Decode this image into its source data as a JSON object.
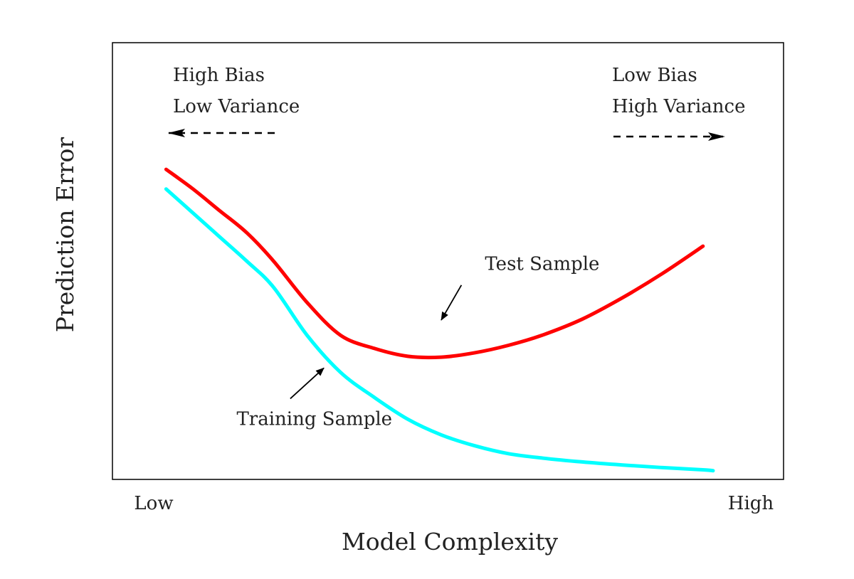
{
  "chart_data": {
    "type": "line",
    "title": "",
    "xlabel": "Model Complexity",
    "ylabel": "Prediction Error",
    "xlim": [
      0,
      1
    ],
    "ylim": [
      0,
      1
    ],
    "x_ticks": [
      {
        "x": 0.06,
        "label": "Low"
      },
      {
        "x": 0.955,
        "label": "High"
      }
    ],
    "grid": false,
    "series": [
      {
        "name": "Test Sample",
        "color": "#ff0000",
        "points": [
          [
            0.08,
            0.71
          ],
          [
            0.12,
            0.665
          ],
          [
            0.16,
            0.615
          ],
          [
            0.2,
            0.565
          ],
          [
            0.24,
            0.5
          ],
          [
            0.29,
            0.405
          ],
          [
            0.34,
            0.33
          ],
          [
            0.39,
            0.3
          ],
          [
            0.44,
            0.282
          ],
          [
            0.49,
            0.28
          ],
          [
            0.54,
            0.29
          ],
          [
            0.59,
            0.307
          ],
          [
            0.64,
            0.33
          ],
          [
            0.7,
            0.367
          ],
          [
            0.76,
            0.416
          ],
          [
            0.82,
            0.472
          ],
          [
            0.88,
            0.534
          ]
        ]
      },
      {
        "name": "Training Sample",
        "color": "#00ffff",
        "points": [
          [
            0.08,
            0.665
          ],
          [
            0.12,
            0.61
          ],
          [
            0.16,
            0.555
          ],
          [
            0.2,
            0.5
          ],
          [
            0.24,
            0.44
          ],
          [
            0.29,
            0.33
          ],
          [
            0.34,
            0.245
          ],
          [
            0.39,
            0.188
          ],
          [
            0.44,
            0.138
          ],
          [
            0.49,
            0.102
          ],
          [
            0.54,
            0.077
          ],
          [
            0.59,
            0.059
          ],
          [
            0.64,
            0.049
          ],
          [
            0.7,
            0.04
          ],
          [
            0.76,
            0.033
          ],
          [
            0.82,
            0.027
          ],
          [
            0.88,
            0.022
          ],
          [
            0.895,
            0.02
          ]
        ]
      }
    ],
    "annotations": [
      {
        "name": "test-sample",
        "text": "Test Sample",
        "x": 0.555,
        "y": 0.48,
        "arrow_from": [
          0.52,
          0.445
        ],
        "arrow_to": [
          0.49,
          0.365
        ]
      },
      {
        "name": "training-sample",
        "text": "Training Sample",
        "x": 0.185,
        "y": 0.125,
        "arrow_from": [
          0.265,
          0.185
        ],
        "arrow_to": [
          0.315,
          0.255
        ]
      }
    ],
    "corner_notes": {
      "left": {
        "line1": "High Bias",
        "line2": "Low Variance"
      },
      "right": {
        "line1": "Low Bias",
        "line2": "High Variance"
      }
    }
  }
}
